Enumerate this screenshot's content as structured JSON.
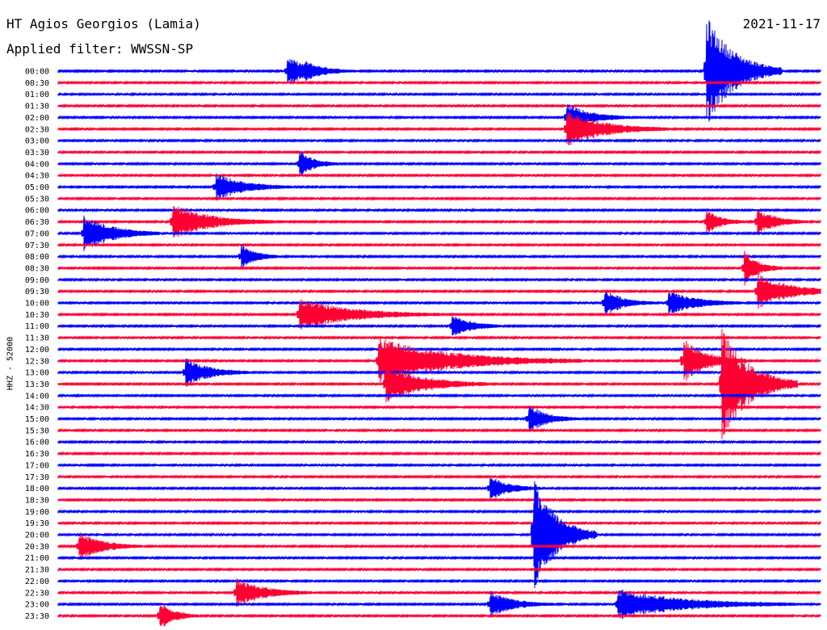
{
  "header": {
    "station": "HT Agios Georgios (Lamia)",
    "filter": "Applied filter: WWSSN-SP",
    "date": "2021-11-17"
  },
  "chart_data": {
    "type": "line",
    "title": "HT Agios Georgios (Lamia)",
    "subtitle": "Applied filter: WWSSN-SP",
    "date": "2021-11-17",
    "ylabel": "HHZ - 52000",
    "colors": [
      "#0000ff",
      "#ff0033"
    ],
    "rows": [
      "00:00",
      "00:30",
      "01:00",
      "01:30",
      "02:00",
      "02:30",
      "03:00",
      "03:30",
      "04:00",
      "04:30",
      "05:00",
      "05:30",
      "06:00",
      "06:30",
      "07:00",
      "07:30",
      "08:00",
      "08:30",
      "09:00",
      "09:30",
      "10:00",
      "10:30",
      "11:00",
      "11:30",
      "12:00",
      "12:30",
      "13:00",
      "13:30",
      "14:00",
      "14:30",
      "15:00",
      "15:30",
      "16:00",
      "16:30",
      "17:00",
      "17:30",
      "18:00",
      "18:30",
      "19:00",
      "19:30",
      "20:00",
      "20:30",
      "21:00",
      "21:30",
      "22:00",
      "22:30",
      "23:00",
      "23:30"
    ],
    "events": [
      {
        "row": "00:00",
        "minute": 9.0,
        "amp": 0.3,
        "dur": 2.5
      },
      {
        "row": "00:00",
        "minute": 9.7,
        "amp": 0.06,
        "dur": 2.0
      },
      {
        "row": "00:00",
        "minute": 25.5,
        "amp": 1.0,
        "dur": 3.0
      },
      {
        "row": "02:00",
        "minute": 20.0,
        "amp": 0.3,
        "dur": 2.5
      },
      {
        "row": "02:30",
        "minute": 20.0,
        "amp": 0.5,
        "dur": 4.0
      },
      {
        "row": "04:00",
        "minute": 9.5,
        "amp": 0.3,
        "dur": 1.5
      },
      {
        "row": "05:00",
        "minute": 6.2,
        "amp": 0.25,
        "dur": 3.0
      },
      {
        "row": "06:30",
        "minute": 4.5,
        "amp": 0.5,
        "dur": 4.0
      },
      {
        "row": "06:30",
        "minute": 25.5,
        "amp": 0.25,
        "dur": 1.5
      },
      {
        "row": "06:30",
        "minute": 27.5,
        "amp": 0.25,
        "dur": 2.0
      },
      {
        "row": "07:00",
        "minute": 1.0,
        "amp": 0.6,
        "dur": 3.0
      },
      {
        "row": "08:00",
        "minute": 7.2,
        "amp": 0.2,
        "dur": 1.5
      },
      {
        "row": "08:30",
        "minute": 27.0,
        "amp": 0.5,
        "dur": 1.5
      },
      {
        "row": "09:30",
        "minute": 27.5,
        "amp": 0.5,
        "dur": 3.5
      },
      {
        "row": "10:00",
        "minute": 21.5,
        "amp": 0.25,
        "dur": 2.0
      },
      {
        "row": "10:00",
        "minute": 24.0,
        "amp": 0.15,
        "dur": 3.0
      },
      {
        "row": "10:30",
        "minute": 9.5,
        "amp": 0.4,
        "dur": 5.5
      },
      {
        "row": "11:00",
        "minute": 15.5,
        "amp": 0.15,
        "dur": 2.0
      },
      {
        "row": "12:30",
        "minute": 12.6,
        "amp": 0.8,
        "dur": 8.0
      },
      {
        "row": "12:30",
        "minute": 24.6,
        "amp": 0.8,
        "dur": 2.5
      },
      {
        "row": "13:00",
        "minute": 5.0,
        "amp": 0.3,
        "dur": 2.5
      },
      {
        "row": "13:30",
        "minute": 12.9,
        "amp": 0.6,
        "dur": 4.0
      },
      {
        "row": "13:30",
        "minute": 26.1,
        "amp": 0.9,
        "dur": 3.0
      },
      {
        "row": "15:00",
        "minute": 18.5,
        "amp": 0.3,
        "dur": 2.0
      },
      {
        "row": "18:00",
        "minute": 17.0,
        "amp": 0.15,
        "dur": 2.0
      },
      {
        "row": "20:00",
        "minute": 18.7,
        "amp": 1.0,
        "dur": 2.5
      },
      {
        "row": "20:30",
        "minute": 0.8,
        "amp": 0.3,
        "dur": 2.5
      },
      {
        "row": "22:30",
        "minute": 7.0,
        "amp": 0.3,
        "dur": 3.0
      },
      {
        "row": "23:00",
        "minute": 17.0,
        "amp": 0.2,
        "dur": 2.5
      },
      {
        "row": "23:00",
        "minute": 22.0,
        "amp": 0.35,
        "dur": 7.0
      },
      {
        "row": "23:30",
        "minute": 4.0,
        "amp": 0.3,
        "dur": 1.5
      }
    ]
  }
}
